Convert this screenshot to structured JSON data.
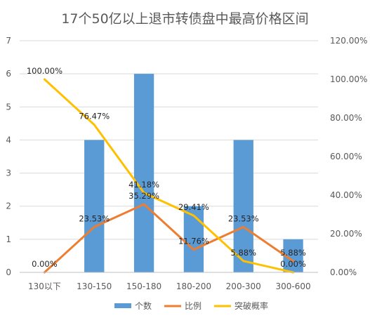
{
  "chart_data": {
    "type": "bar",
    "title": "17个50亿以上退市转债盘中最高价格区间",
    "categories": [
      "130以下",
      "130-150",
      "150-180",
      "180-200",
      "200-300",
      "300-600"
    ],
    "left_axis": {
      "min": 0,
      "max": 7,
      "step": 1,
      "ticks": [
        "0",
        "1",
        "2",
        "3",
        "4",
        "5",
        "6",
        "7"
      ]
    },
    "right_axis": {
      "min": 0,
      "max": 1.2,
      "step": 0.2,
      "ticks": [
        "0.00%",
        "20.00%",
        "40.00%",
        "60.00%",
        "80.00%",
        "100.00%",
        "120.00%"
      ]
    },
    "grid": true,
    "legend_position": "bottom",
    "series": [
      {
        "name": "个数",
        "type": "bar",
        "axis": "left",
        "color": "#5B9BD5",
        "values": [
          0,
          4,
          6,
          2,
          4,
          1
        ],
        "labels": [
          "",
          "",
          "",
          "",
          "",
          ""
        ]
      },
      {
        "name": "比例",
        "type": "line",
        "axis": "right",
        "color": "#ED7D31",
        "values": [
          0,
          0.2353,
          0.3529,
          0.1176,
          0.2353,
          0.0588
        ],
        "labels": [
          "0.00%",
          "23.53%",
          "35.29%",
          "11.76%",
          "23.53%",
          "5.88%"
        ]
      },
      {
        "name": "突破概率",
        "type": "line",
        "axis": "right",
        "color": "#FFC000",
        "values": [
          1.0,
          0.7647,
          0.4118,
          0.2941,
          0.0588,
          0.0
        ],
        "labels": [
          "100.00%",
          "76.47%",
          "41.18%",
          "29.41%",
          "5.88%",
          "0.00%"
        ]
      }
    ]
  }
}
